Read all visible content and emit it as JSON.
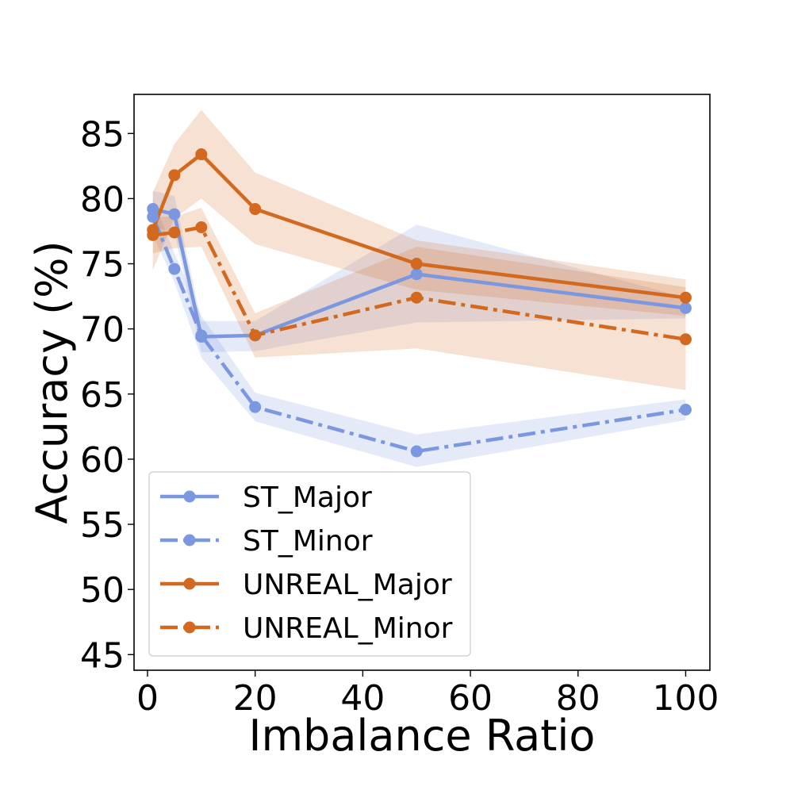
{
  "chart_data": {
    "type": "line",
    "title": "",
    "xlabel": "Imbalance Ratio",
    "ylabel": "Accuracy (%)",
    "xlim": [
      -2.5,
      104.5
    ],
    "ylim": [
      43.8,
      88.0
    ],
    "xticks": [
      0,
      20,
      40,
      60,
      80,
      100
    ],
    "yticks": [
      45,
      50,
      55,
      60,
      65,
      70,
      75,
      80,
      85
    ],
    "grid": false,
    "legend_position": "lower-left",
    "x": [
      1,
      5,
      10,
      20,
      50,
      100
    ],
    "series": [
      {
        "name": "ST_Major",
        "color": "#7b97df",
        "style": "solid",
        "values": [
          79.2,
          78.8,
          69.4,
          69.5,
          74.2,
          71.6
        ],
        "lower": [
          77.8,
          77.4,
          68.2,
          68.3,
          70.5,
          70.8
        ],
        "upper": [
          80.6,
          80.2,
          70.6,
          70.6,
          78.0,
          72.4
        ]
      },
      {
        "name": "ST_Minor",
        "color": "#7b97df",
        "style": "dashdot",
        "values": [
          78.6,
          74.6,
          69.5,
          64.0,
          60.6,
          63.8
        ],
        "lower": [
          77.2,
          73.6,
          67.8,
          62.9,
          59.4,
          63.0
        ],
        "upper": [
          80.0,
          75.8,
          71.0,
          65.1,
          61.9,
          64.6
        ]
      },
      {
        "name": "UNREAL_Major",
        "color": "#d2691e",
        "style": "solid",
        "values": [
          77.6,
          81.8,
          83.4,
          79.2,
          75.0,
          72.4
        ],
        "lower": [
          74.5,
          78.5,
          80.0,
          76.5,
          73.0,
          71.0
        ],
        "upper": [
          80.5,
          84.2,
          86.8,
          82.0,
          76.8,
          73.8
        ]
      },
      {
        "name": "UNREAL_Minor",
        "color": "#d2691e",
        "style": "dashdot",
        "values": [
          77.2,
          77.4,
          77.8,
          69.5,
          72.4,
          69.2
        ],
        "lower": [
          75.8,
          76.2,
          76.3,
          67.8,
          68.5,
          65.3
        ],
        "upper": [
          78.6,
          78.6,
          79.3,
          71.2,
          76.3,
          73.2
        ]
      }
    ]
  }
}
